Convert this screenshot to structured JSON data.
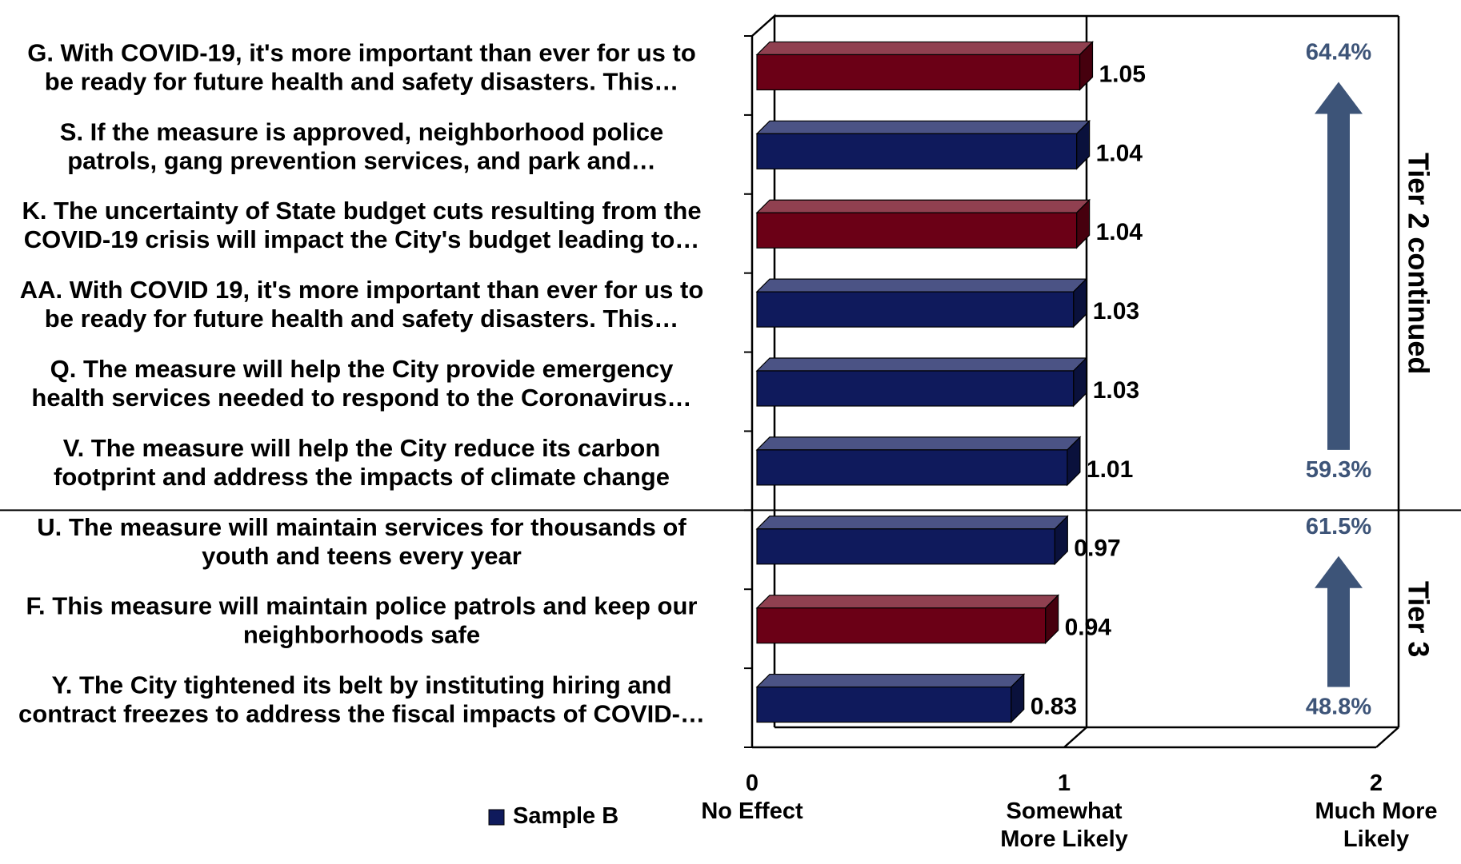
{
  "chart_data": {
    "type": "bar",
    "orientation": "horizontal",
    "categories": [
      [
        "G. With COVID-19, it's more important than ever for us to",
        "be ready for future health and safety disasters. This…"
      ],
      [
        "S. If the measure is approved, neighborhood police",
        "patrols, gang prevention services, and park and…"
      ],
      [
        "K. The uncertainty of State budget cuts resulting from the",
        "COVID-19 crisis will impact the City's budget leading to…"
      ],
      [
        "AA. With COVID 19, it's more important than ever for us to",
        "be ready for future health and safety disasters. This…"
      ],
      [
        "Q. The measure will help the City provide emergency",
        "health services needed to respond to the Coronavirus…"
      ],
      [
        "V. The measure will help the City reduce its carbon",
        "footprint and address the impacts of climate change"
      ],
      [
        "U. The measure will maintain services for thousands of",
        "youth and teens every year"
      ],
      [
        "F. This measure will maintain police patrols and keep our",
        "neighborhoods safe"
      ],
      [
        "Y. The City tightened its belt by instituting hiring and",
        "contract freezes to address the fiscal impacts of COVID-…"
      ]
    ],
    "values": [
      1.05,
      1.04,
      1.04,
      1.03,
      1.03,
      1.01,
      0.97,
      0.94,
      0.83
    ],
    "value_labels": [
      "1.05",
      "1.04",
      "1.04",
      "1.03",
      "1.03",
      "1.01",
      "0.97",
      "0.94",
      "0.83"
    ],
    "bar_colors": [
      "#6b0016",
      "#0f1a5c",
      "#6b0016",
      "#0f1a5c",
      "#0f1a5c",
      "#0f1a5c",
      "#0f1a5c",
      "#6b0016",
      "#0f1a5c"
    ],
    "xlim": [
      0,
      2
    ],
    "x_ticks": [
      {
        "value": 0,
        "label": [
          "0",
          "No Effect"
        ]
      },
      {
        "value": 1,
        "label": [
          "1",
          "Somewhat",
          "More  Likely"
        ]
      },
      {
        "value": 2,
        "label": [
          "2",
          "Much More",
          "Likely"
        ]
      }
    ],
    "legend": {
      "label": "Sample B",
      "color": "#0f1a5c",
      "position": "bottom-left"
    },
    "groups": [
      {
        "name": "Tier 2 continued",
        "first_row": 0,
        "last_row": 5,
        "top_pct": "64.4%",
        "bottom_pct": "59.3%"
      },
      {
        "name": "Tier 3",
        "first_row": 6,
        "last_row": 8,
        "top_pct": "61.5%",
        "bottom_pct": "48.8%"
      }
    ],
    "colors": {
      "blue_bar": "#0f1a5c",
      "red_bar": "#6b0016",
      "arrow": "#3d5478",
      "pct_text": "#3d5478"
    }
  }
}
